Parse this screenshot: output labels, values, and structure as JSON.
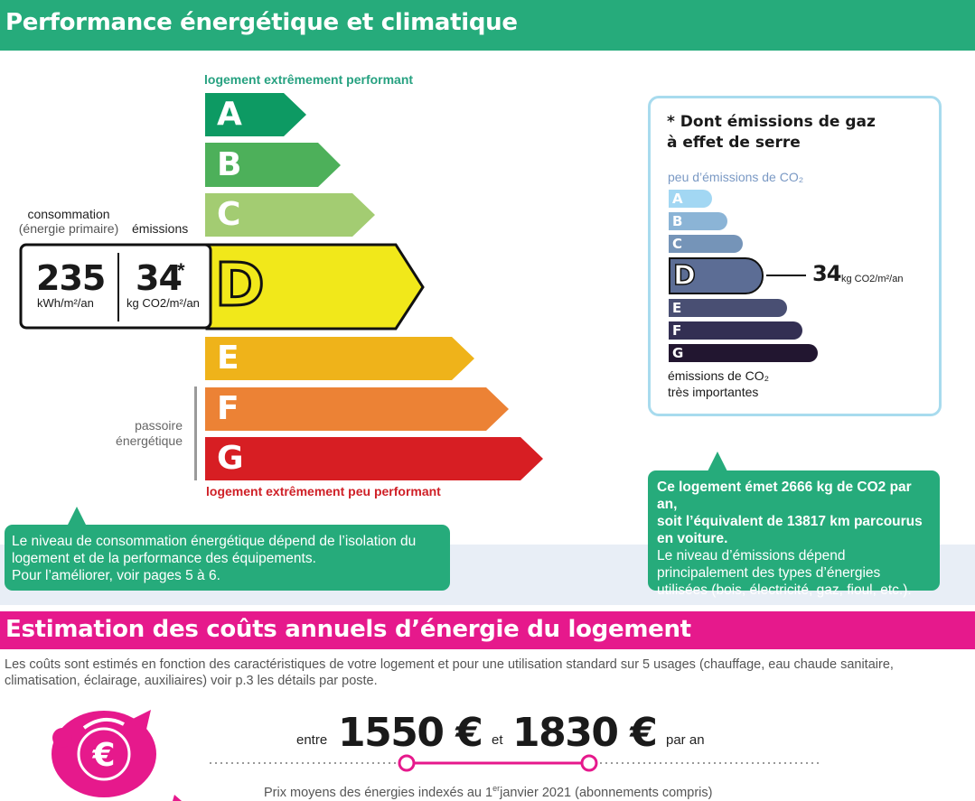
{
  "header": {
    "title": "Performance énergétique et climatique"
  },
  "dpe": {
    "top_label": "logement extrêmement performant",
    "bottom_label": "logement extrêmement peu performant",
    "classes": [
      {
        "letter": "A",
        "color": "#0d9a63"
      },
      {
        "letter": "B",
        "color": "#4db05a"
      },
      {
        "letter": "C",
        "color": "#a3cc72"
      },
      {
        "letter": "D",
        "color": "#f1e81a"
      },
      {
        "letter": "E",
        "color": "#efb31a"
      },
      {
        "letter": "F",
        "color": "#ec8235"
      },
      {
        "letter": "G",
        "color": "#d71e23"
      }
    ],
    "current_class": "D",
    "consumption_label": "consommation",
    "consumption_sub": "(énergie primaire)",
    "emissions_label": "émissions",
    "consumption_value": "235",
    "consumption_unit": "kWh/m²/an",
    "emissions_value": "34",
    "emissions_star": "*",
    "emissions_unit": "kg CO2/m²/an",
    "passoire_line1": "passoire",
    "passoire_line2": "énergétique"
  },
  "callout_left": {
    "line1": "Le niveau de consommation énergétique dépend de l’isolation du",
    "line2": "logement et de la performance des équipements.",
    "line3": "Pour l’améliorer, voir pages 5 à 6."
  },
  "ges": {
    "title_line1": "* Dont émissions de gaz",
    "title_line2": "à effet de serre",
    "top_label": "peu d’émissions de CO₂",
    "bottom_line1": "émissions de CO₂",
    "bottom_line2": "très importantes",
    "classes": [
      {
        "letter": "A",
        "color": "#a2d7f3"
      },
      {
        "letter": "B",
        "color": "#8bb4d6"
      },
      {
        "letter": "C",
        "color": "#7594b8"
      },
      {
        "letter": "D",
        "color": "#5c6d95"
      },
      {
        "letter": "E",
        "color": "#494f73"
      },
      {
        "letter": "F",
        "color": "#332f53"
      },
      {
        "letter": "G",
        "color": "#221630"
      }
    ],
    "current_class": "D",
    "value": "34",
    "unit": "kg CO2/m²/an"
  },
  "callout_right": {
    "bold_line1": "Ce logement émet 2666 kg de CO2 par an,",
    "bold_line2": "soit l’équivalent de 13817 km parcourus",
    "bold_line3": "en voiture.",
    "line4": "Le niveau d’émissions dépend",
    "line5": "principalement des types d’énergies",
    "line6": "utilisées (bois, électricité, gaz, fioul, etc.)."
  },
  "costs": {
    "title": "Estimation des coûts annuels d’énergie du logement",
    "desc_line1": "Les coûts sont estimés en fonction des caractéristiques de votre logement et pour une utilisation standard sur 5 usages (chauffage, eau chaude sanitaire,",
    "desc_line2": "climatisation, éclairage, auxiliaires) voir p.3 les détails par poste.",
    "between_label": "entre",
    "min_value": "1550 €",
    "and_label": "et",
    "max_value": "1830 €",
    "per_year": "par an",
    "note_part1": "Prix moyens des énergies indexés au 1",
    "note_sup": "er",
    "note_part2": "janvier 2021 (abonnements compris)",
    "icon_symbol": "€",
    "accent": "#e6198c"
  }
}
